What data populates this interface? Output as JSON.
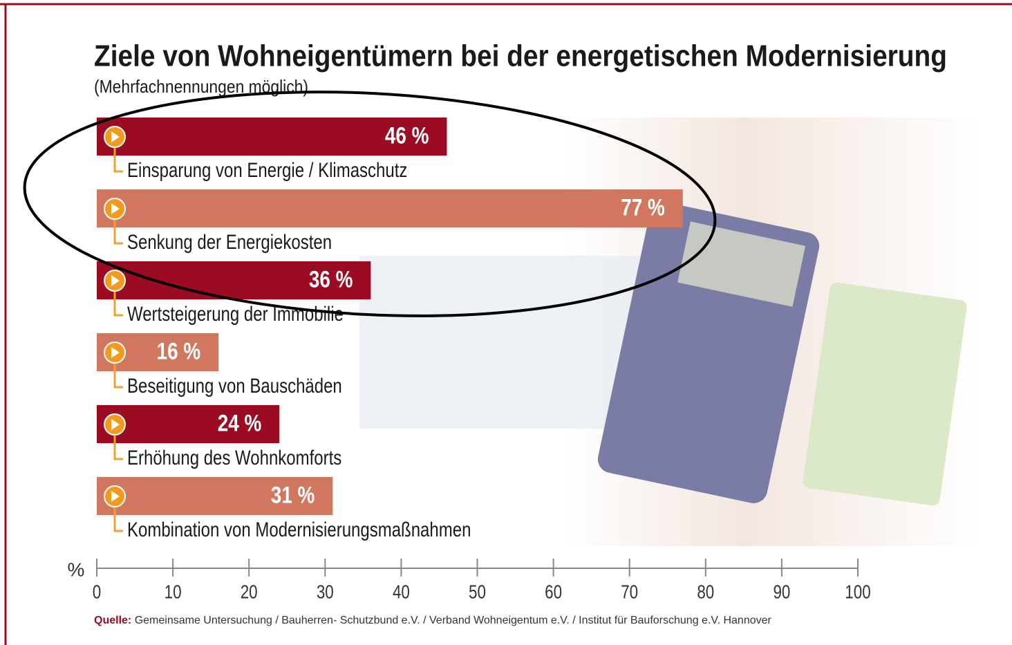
{
  "chart_data": {
    "type": "bar",
    "orientation": "horizontal",
    "title": "Ziele von Wohneigentümern bei der energetischen Modernisierung",
    "subtitle": "(Mehrfachnennungen möglich)",
    "categories": [
      "Einsparung von Energie / Klimaschutz",
      "Senkung der  Energiekosten",
      "Wertsteigerung der Immobilie",
      "Beseitigung von Bauschäden",
      "Erhöhung des Wohnkomforts",
      "Kombination von Modernisierungsmaßnahmen"
    ],
    "values": [
      46,
      77,
      36,
      16,
      24,
      31
    ],
    "value_labels": [
      "46 %",
      "77 %",
      "36 %",
      "16 %",
      "24 %",
      "31 %"
    ],
    "colors": [
      "#9b0b22",
      "#d2775f",
      "#9b0b22",
      "#d2775f",
      "#9b0b22",
      "#d2775f"
    ],
    "x_label": "%",
    "xlim": [
      0,
      100
    ],
    "xticks": [
      0,
      10,
      20,
      30,
      40,
      50,
      60,
      70,
      80,
      90,
      100
    ],
    "source_label": "Quelle:",
    "source": "Gemeinsame Untersuchung / Bauherren- Schutzbund e.V. / Verband Wohneigentum e.V. / Institut für Bauforschung e.V. Hannover"
  }
}
